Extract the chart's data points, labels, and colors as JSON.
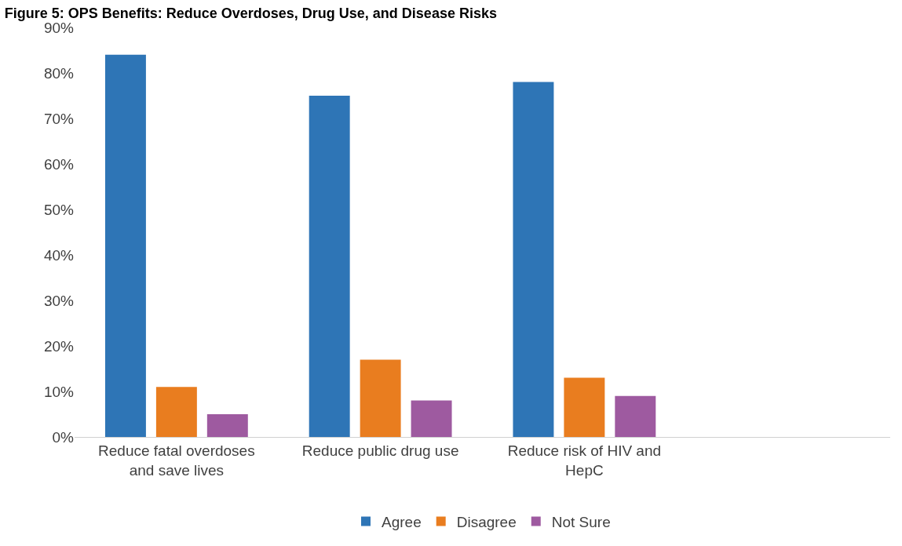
{
  "chart_data": {
    "type": "bar",
    "title": "Figure 5: OPS Benefits: Reduce Overdoses, Drug Use, and Disease Risks",
    "categories": [
      "Reduce fatal overdoses and save lives",
      "Reduce public drug use",
      "Reduce risk of HIV and HepC",
      null
    ],
    "series": [
      {
        "name": "Agree",
        "color": "#2e75b6",
        "values": [
          84,
          75,
          78,
          null
        ]
      },
      {
        "name": "Disagree",
        "color": "#e97d1f",
        "values": [
          11,
          17,
          13,
          null
        ]
      },
      {
        "name": "Not Sure",
        "color": "#9e5aa0",
        "values": [
          5,
          8,
          9,
          null
        ]
      }
    ],
    "ylim": [
      0,
      90
    ],
    "yticks": [
      {
        "value": 0,
        "label": "0%"
      },
      {
        "value": 10,
        "label": "10%"
      },
      {
        "value": 20,
        "label": "20%"
      },
      {
        "value": 30,
        "label": "30%"
      },
      {
        "value": 40,
        "label": "40%"
      },
      {
        "value": 50,
        "label": "50%"
      },
      {
        "value": 60,
        "label": "60%"
      },
      {
        "value": 70,
        "label": "70%"
      },
      {
        "value": 80,
        "label": "80%"
      },
      {
        "value": 90,
        "label": "90%"
      }
    ],
    "grid": false,
    "legend": "bottom"
  }
}
